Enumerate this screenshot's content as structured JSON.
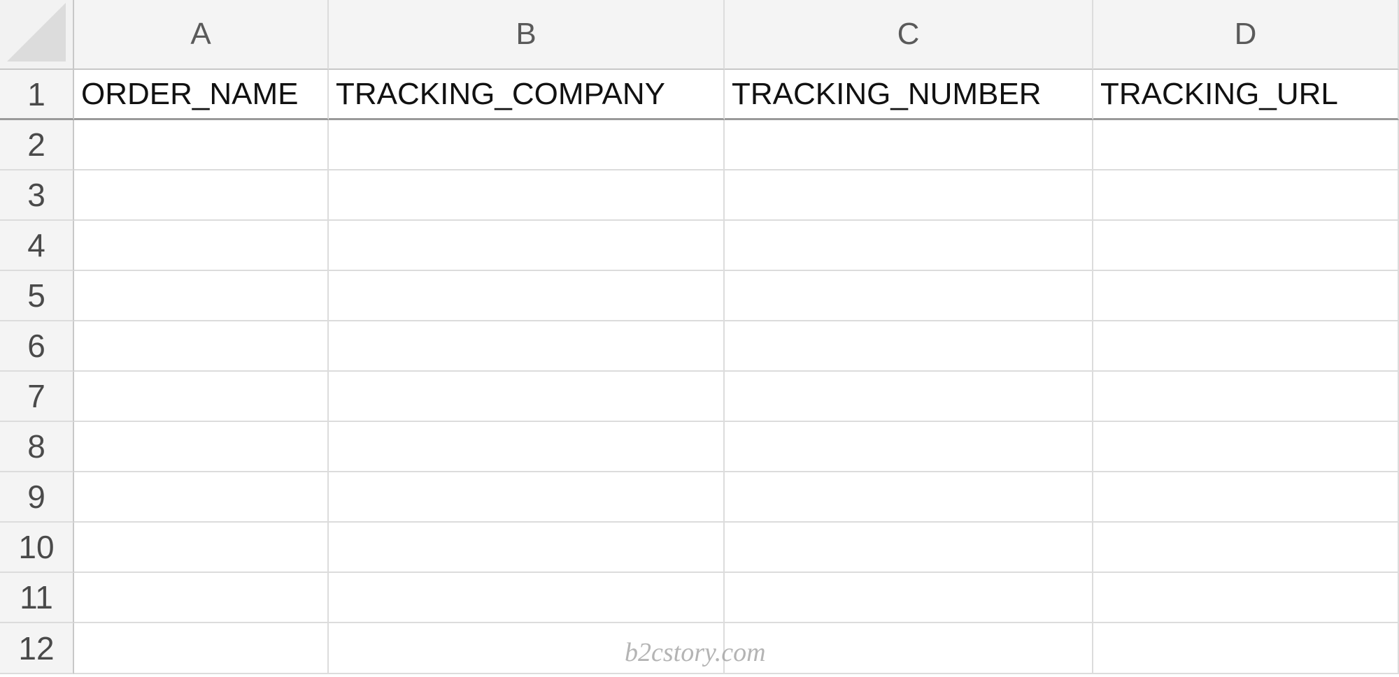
{
  "columns": [
    "A",
    "B",
    "C",
    "D"
  ],
  "rows": [
    "1",
    "2",
    "3",
    "4",
    "5",
    "6",
    "7",
    "8",
    "9",
    "10",
    "11",
    "12"
  ],
  "headers": [
    "ORDER_NAME",
    "TRACKING_COMPANY",
    "TRACKING_NUMBER",
    "TRACKING_URL"
  ],
  "watermark": "b2cstory.com"
}
